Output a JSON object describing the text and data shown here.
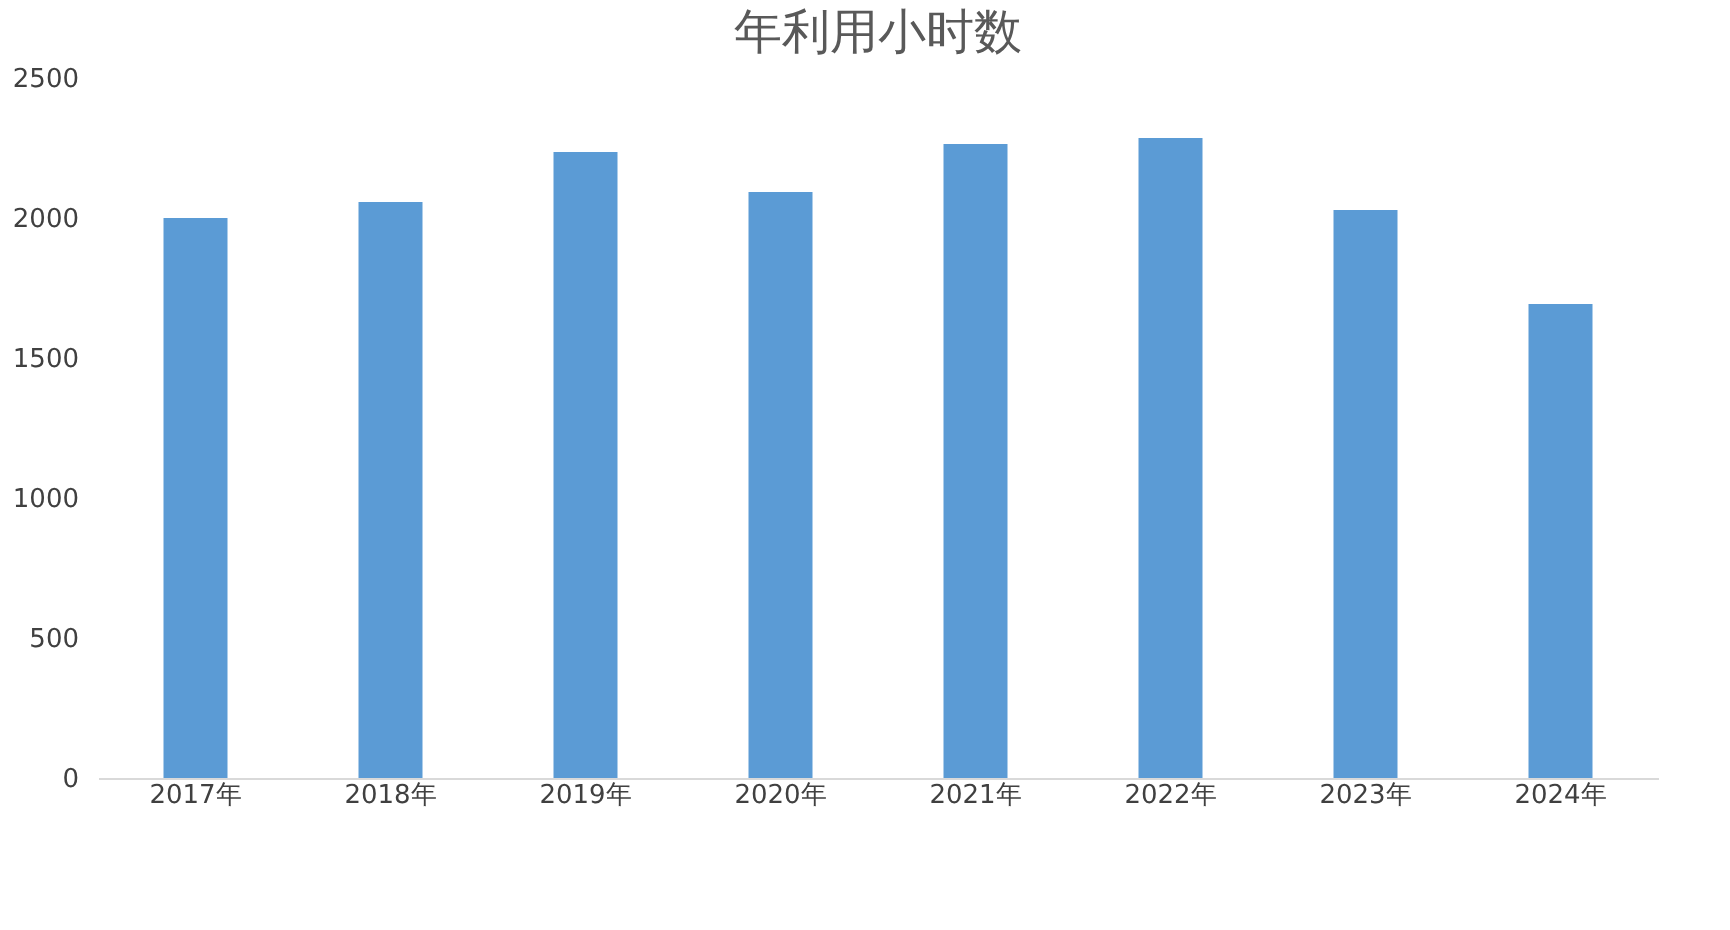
{
  "chart_data": {
    "type": "bar",
    "title": "年利用小时数",
    "categories": [
      "2017年",
      "2018年",
      "2019年",
      "2020年",
      "2021年",
      "2022年",
      "2023年",
      "2024年"
    ],
    "values": [
      2000,
      2057,
      2236,
      2093,
      2264,
      2286,
      2029,
      1693
    ],
    "color": "#5b9bd5",
    "ylim": [
      0,
      2500
    ],
    "yticks": [
      0,
      500,
      1000,
      1500,
      2000,
      2500
    ],
    "grid": false
  }
}
